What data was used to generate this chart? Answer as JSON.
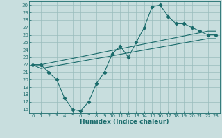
{
  "xlabel": "Humidex (Indice chaleur)",
  "background_color": "#c8dede",
  "grid_color": "#9abcbc",
  "line_color": "#1a6b6b",
  "xlim": [
    -0.5,
    23.5
  ],
  "ylim": [
    15.5,
    30.5
  ],
  "xticks": [
    0,
    1,
    2,
    3,
    4,
    5,
    6,
    7,
    8,
    9,
    10,
    11,
    12,
    13,
    14,
    15,
    16,
    17,
    18,
    19,
    20,
    21,
    22,
    23
  ],
  "yticks": [
    16,
    17,
    18,
    19,
    20,
    21,
    22,
    23,
    24,
    25,
    26,
    27,
    28,
    29,
    30
  ],
  "line1_x": [
    0,
    1,
    2,
    3,
    4,
    5,
    6,
    7,
    8,
    9,
    10,
    11,
    12,
    13,
    14,
    15,
    16,
    17,
    18,
    19,
    20,
    21,
    22,
    23
  ],
  "line1_y": [
    22,
    22,
    21,
    20,
    17.5,
    16,
    15.8,
    17,
    19.5,
    21,
    23.5,
    24.5,
    23,
    25,
    27,
    29.8,
    30,
    28.5,
    27.5,
    27.5,
    27,
    26.5,
    26,
    26
  ],
  "line2_x": [
    0,
    1,
    22,
    23
  ],
  "line2_y": [
    22,
    22,
    26.5,
    26.5
  ],
  "line3_x": [
    0,
    1,
    22,
    23
  ],
  "line3_y": [
    22,
    21.5,
    25.5,
    25.5
  ],
  "marker": "D",
  "markersize": 2.2,
  "linewidth": 0.8,
  "tick_fontsize": 5.0,
  "xlabel_fontsize": 6.5
}
